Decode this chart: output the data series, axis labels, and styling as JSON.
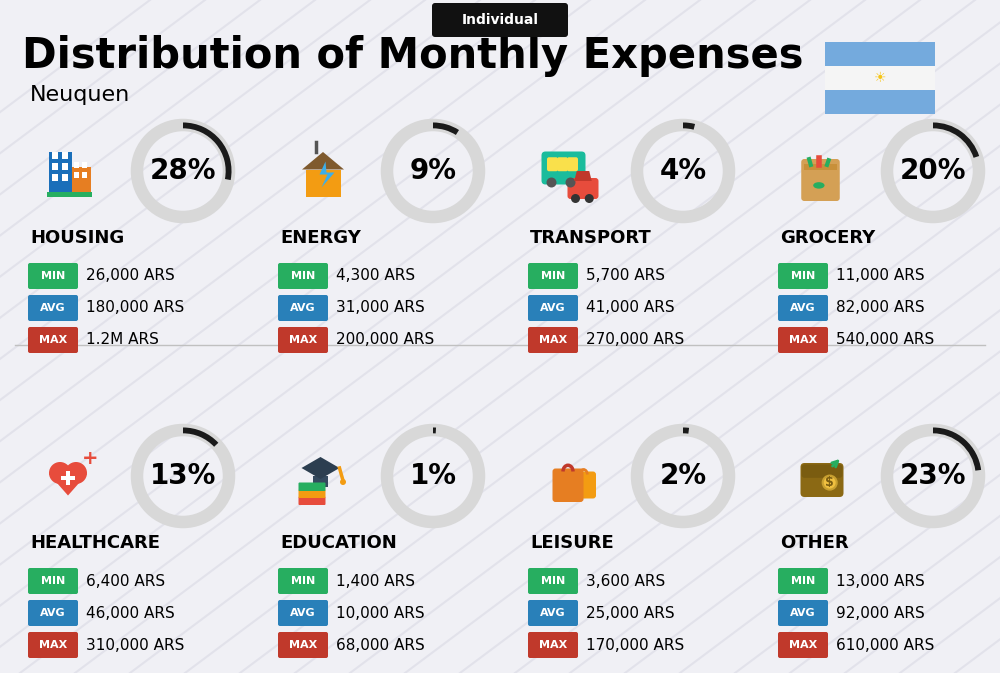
{
  "title": "Distribution of Monthly Expenses",
  "subtitle": "Individual",
  "city": "Neuquen",
  "background_color": "#f0f0f5",
  "categories": [
    {
      "name": "HOUSING",
      "percent": 28,
      "min": "26,000 ARS",
      "avg": "180,000 ARS",
      "max": "1.2M ARS",
      "row": 0,
      "col": 0,
      "icon_type": "housing"
    },
    {
      "name": "ENERGY",
      "percent": 9,
      "min": "4,300 ARS",
      "avg": "31,000 ARS",
      "max": "200,000 ARS",
      "row": 0,
      "col": 1,
      "icon_type": "energy"
    },
    {
      "name": "TRANSPORT",
      "percent": 4,
      "min": "5,700 ARS",
      "avg": "41,000 ARS",
      "max": "270,000 ARS",
      "row": 0,
      "col": 2,
      "icon_type": "transport"
    },
    {
      "name": "GROCERY",
      "percent": 20,
      "min": "11,000 ARS",
      "avg": "82,000 ARS",
      "max": "540,000 ARS",
      "row": 0,
      "col": 3,
      "icon_type": "grocery"
    },
    {
      "name": "HEALTHCARE",
      "percent": 13,
      "min": "6,400 ARS",
      "avg": "46,000 ARS",
      "max": "310,000 ARS",
      "row": 1,
      "col": 0,
      "icon_type": "healthcare"
    },
    {
      "name": "EDUCATION",
      "percent": 1,
      "min": "1,400 ARS",
      "avg": "10,000 ARS",
      "max": "68,000 ARS",
      "row": 1,
      "col": 1,
      "icon_type": "education"
    },
    {
      "name": "LEISURE",
      "percent": 2,
      "min": "3,600 ARS",
      "avg": "25,000 ARS",
      "max": "170,000 ARS",
      "row": 1,
      "col": 2,
      "icon_type": "leisure"
    },
    {
      "name": "OTHER",
      "percent": 23,
      "min": "13,000 ARS",
      "avg": "92,000 ARS",
      "max": "610,000 ARS",
      "row": 1,
      "col": 3,
      "icon_type": "other"
    }
  ],
  "min_color": "#27ae60",
  "avg_color": "#2980b9",
  "max_color": "#c0392b",
  "circle_dark": "#1a1a1a",
  "circle_bg": "#d8d8d8",
  "title_fontsize": 30,
  "category_fontsize": 12,
  "value_fontsize": 11,
  "percent_fontsize": 20,
  "flag_blue": "#74AADD",
  "flag_white": "#f5f5f5",
  "flag_sun": "#F5C518"
}
